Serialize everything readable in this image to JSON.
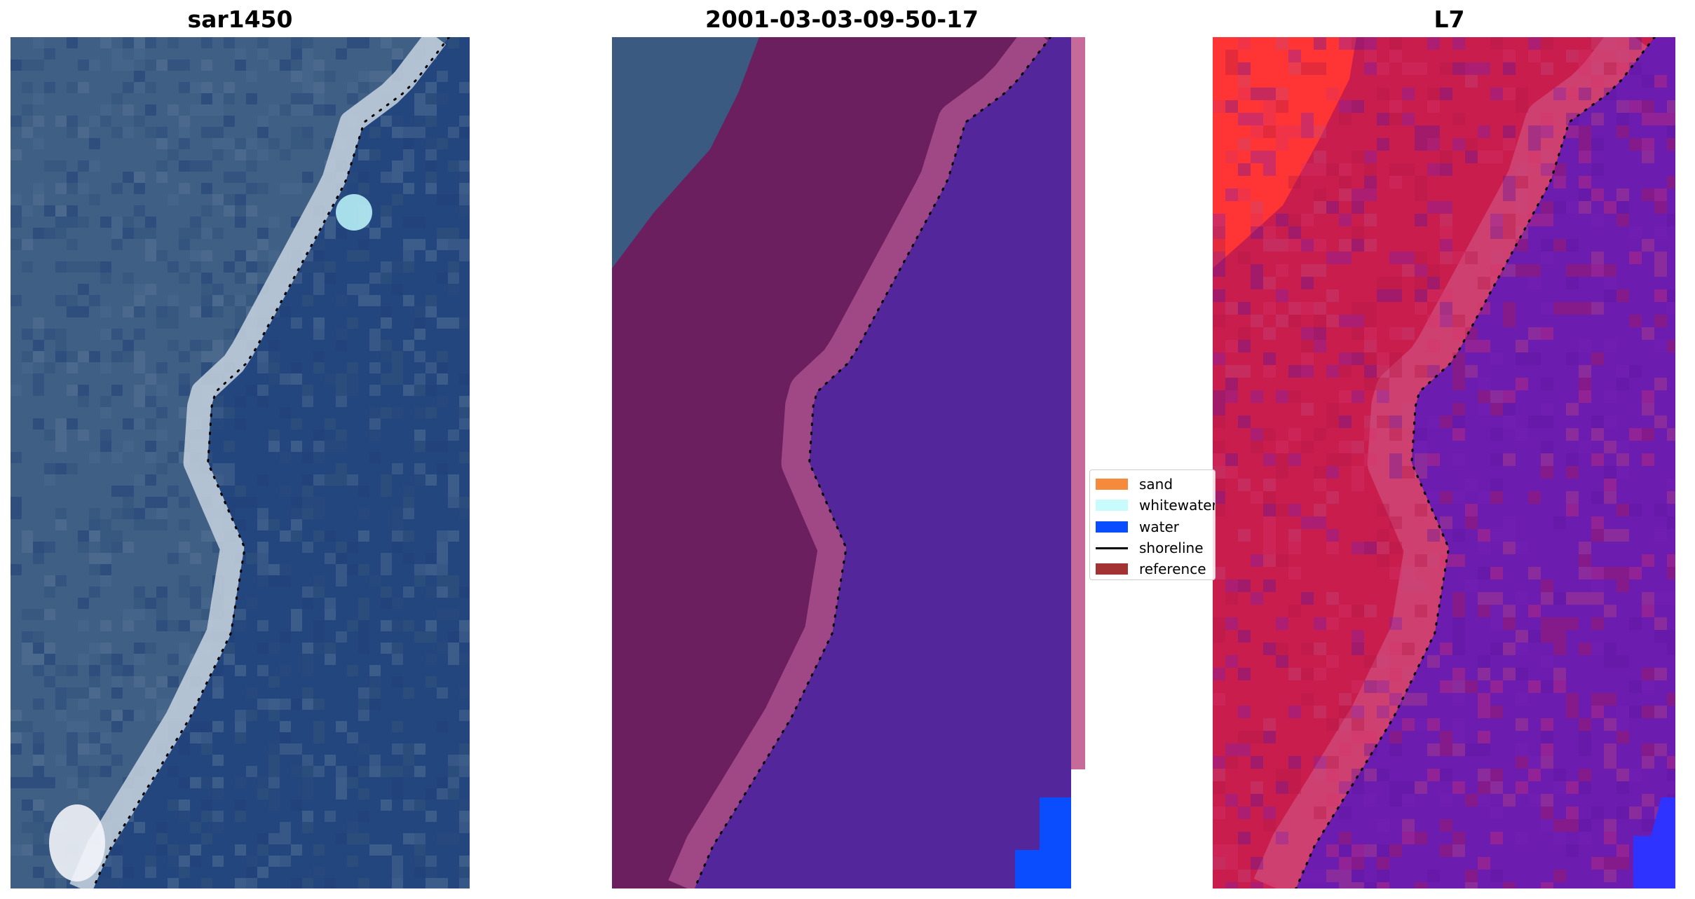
{
  "panels": [
    {
      "title": "sar1450"
    },
    {
      "title": "2001-03-03-09-50-17"
    },
    {
      "title": "L7"
    }
  ],
  "legend": {
    "items": [
      {
        "label": "sand",
        "color": "#f58a3c",
        "kind": "patch"
      },
      {
        "label": "whitewater",
        "color": "#c8fbfb",
        "kind": "patch"
      },
      {
        "label": "water",
        "color": "#0a4dff",
        "kind": "patch"
      },
      {
        "label": "shoreline",
        "color": "#000000",
        "kind": "line"
      },
      {
        "label": "reference",
        "color": "#a33333",
        "kind": "patch"
      }
    ]
  },
  "colors": {
    "land_rgb": "#3f5f85",
    "water_rgb": "#24467f",
    "surf_rgb": "#c7d3df",
    "land_class": "#6b1f5e",
    "land_edge_class": "#b65a95",
    "water_class": "#54269b",
    "edge_bar": "#c66a9a",
    "water_blue": "#0a4dff",
    "land_l7": "#c81d4d",
    "veg_l7": "#ff3535",
    "water_l7": "#6c1cae"
  }
}
